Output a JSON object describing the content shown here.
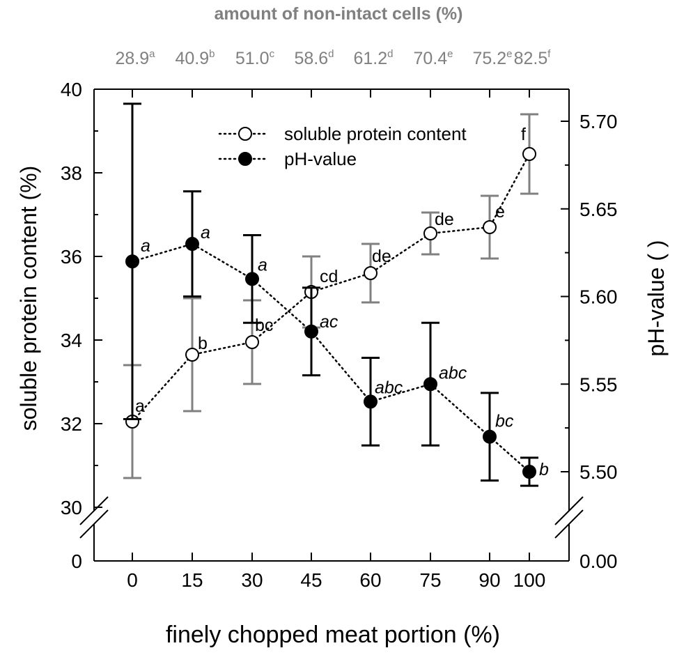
{
  "chart_data": {
    "type": "line",
    "top_axis": {
      "title": "amount of non-intact cells (%)",
      "values": [
        {
          "value": "28.9",
          "letter": "a"
        },
        {
          "value": "40.9",
          "letter": "b"
        },
        {
          "value": "51.0",
          "letter": "c"
        },
        {
          "value": "58.6",
          "letter": "d"
        },
        {
          "value": "61.2",
          "letter": "d"
        },
        {
          "value": "70.4",
          "letter": "e"
        },
        {
          "value": "75.2",
          "letter": "e"
        },
        {
          "value": "82.5",
          "letter": "f"
        }
      ]
    },
    "xlabel": "finely chopped meat portion (%)",
    "x": [
      0,
      15,
      30,
      45,
      60,
      75,
      90,
      100
    ],
    "x_tick_labels": [
      "0",
      "15",
      "30",
      "45",
      "60",
      "75",
      "90",
      "100"
    ],
    "ylabel_left": "soluble protein content (%)",
    "ylim_left": [
      30,
      40
    ],
    "yticks_left": [
      "30",
      "32",
      "34",
      "36",
      "38",
      "40"
    ],
    "y_break_left": "0",
    "ylabel_right": "pH-value ( )",
    "ylim_right": [
      5.48,
      5.72
    ],
    "yticks_right": [
      "5.50",
      "5.55",
      "5.60",
      "5.65",
      "5.70"
    ],
    "y_break_right": "0.00",
    "series": [
      {
        "name": "soluble protein content",
        "axis": "left",
        "marker": "open-circle",
        "color": "#000000",
        "errorbar_color": "#808080",
        "values": [
          32.05,
          33.65,
          33.95,
          35.15,
          35.6,
          36.55,
          36.7,
          38.45
        ],
        "errors": [
          1.35,
          1.35,
          1.0,
          0.85,
          0.7,
          0.5,
          0.75,
          0.95
        ],
        "labels": [
          "a",
          "b",
          "bc",
          "cd",
          "de",
          "de",
          "e",
          "f"
        ]
      },
      {
        "name": "pH-value",
        "axis": "right",
        "marker": "filled-circle",
        "color": "#000000",
        "errorbar_color": "#000000",
        "values": [
          5.62,
          5.63,
          5.61,
          5.58,
          5.54,
          5.55,
          5.52,
          5.5
        ],
        "errors": [
          0.09,
          0.03,
          0.025,
          0.025,
          0.025,
          0.035,
          0.025,
          0.008
        ],
        "labels": [
          "a",
          "a",
          "a",
          "ac",
          "abc",
          "abc",
          "bc",
          "b"
        ]
      }
    ],
    "legend_position": "top-center",
    "text_color_top_axis": "#808080"
  }
}
